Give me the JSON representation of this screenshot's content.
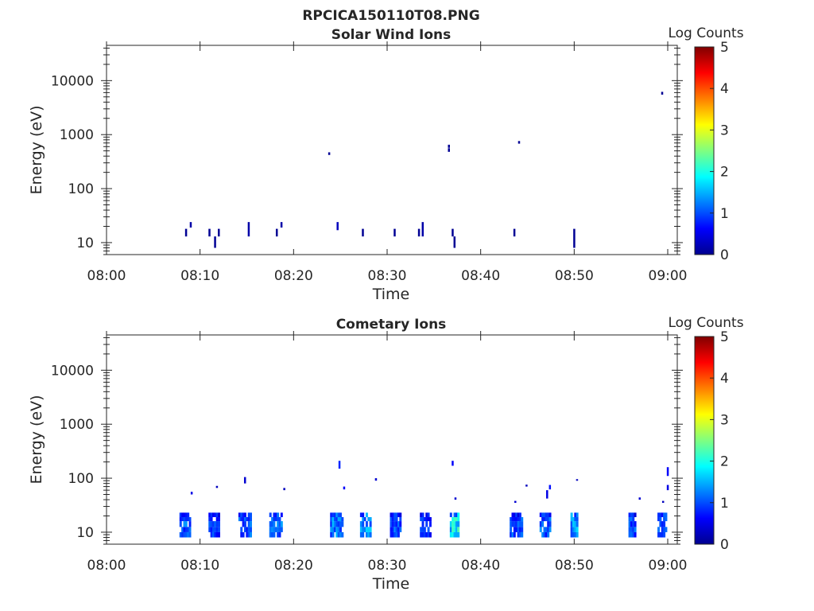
{
  "figure": {
    "title": "RPCICA150110T08.PNG"
  },
  "chart_data": [
    {
      "type": "heatmap",
      "title": "Solar Wind Ions",
      "xlabel": "Time",
      "ylabel": "Energy (eV)",
      "xlim": [
        "08:00",
        "09:00"
      ],
      "ylim": [
        6,
        45000
      ],
      "yscale": "log",
      "x_ticks": [
        "08:00",
        "08:10",
        "08:20",
        "08:30",
        "08:40",
        "08:50",
        "09:00"
      ],
      "y_ticks": [
        10,
        100,
        1000,
        10000
      ],
      "y_tick_labels": [
        "10",
        "100",
        "1000",
        "10000"
      ],
      "colorbar": {
        "label": "Log Counts",
        "min": 0,
        "max": 5,
        "ticks": [
          "0",
          "1",
          "2",
          "3",
          "4",
          "5"
        ],
        "colormap": "jet"
      },
      "grid": false,
      "cells": [
        [
          8.4,
          13,
          18,
          0.1
        ],
        [
          8.9,
          19,
          24,
          0.2
        ],
        [
          10.9,
          13,
          18,
          0.1
        ],
        [
          11.5,
          8,
          13,
          0.1
        ],
        [
          11.9,
          13,
          18,
          0.1
        ],
        [
          15.1,
          13,
          24,
          0.2
        ],
        [
          18.1,
          13,
          18,
          0.1
        ],
        [
          18.6,
          19,
          24,
          0.2
        ],
        [
          23.7,
          420,
          470,
          0.1
        ],
        [
          24.6,
          17,
          24,
          0.3
        ],
        [
          27.3,
          13,
          18,
          0.1
        ],
        [
          30.7,
          13,
          18,
          0.1
        ],
        [
          33.3,
          13,
          18,
          0.1
        ],
        [
          33.7,
          13,
          24,
          0.2
        ],
        [
          36.5,
          480,
          560,
          0.1
        ],
        [
          36.5,
          570,
          650,
          0.1
        ],
        [
          36.9,
          13,
          18,
          0.1
        ],
        [
          37.1,
          8,
          13,
          0.1
        ],
        [
          43.5,
          13,
          18,
          0.1
        ],
        [
          44.0,
          680,
          760,
          0.1
        ],
        [
          49.9,
          8,
          18,
          0.1
        ],
        [
          59.3,
          5500,
          6200,
          0.1
        ]
      ]
    },
    {
      "type": "heatmap",
      "title": "Cometary Ions",
      "xlabel": "Time",
      "ylabel": "Energy (eV)",
      "xlim": [
        "08:00",
        "09:00"
      ],
      "ylim": [
        6,
        45000
      ],
      "yscale": "log",
      "x_ticks": [
        "08:00",
        "08:10",
        "08:20",
        "08:30",
        "08:40",
        "08:50",
        "09:00"
      ],
      "y_ticks": [
        10,
        100,
        1000,
        10000
      ],
      "y_tick_labels": [
        "10",
        "100",
        "1000",
        "10000"
      ],
      "colorbar": {
        "label": "Log Counts",
        "min": 0,
        "max": 5,
        "ticks": [
          "0",
          "1",
          "2",
          "3",
          "4",
          "5"
        ],
        "colormap": "jet"
      },
      "grid": false,
      "clusters": [
        [
          7.8,
          8.9,
          1.2
        ],
        [
          10.9,
          12.0,
          1.0
        ],
        [
          14.1,
          15.4,
          1.2
        ],
        [
          17.4,
          18.6,
          1.3
        ],
        [
          23.9,
          25.2,
          1.4
        ],
        [
          27.1,
          28.2,
          1.5
        ],
        [
          30.3,
          31.4,
          1.2
        ],
        [
          33.5,
          34.6,
          1.0
        ],
        [
          36.7,
          37.6,
          2.0
        ],
        [
          43.1,
          44.4,
          1.1
        ],
        [
          46.3,
          47.5,
          1.2
        ],
        [
          49.6,
          50.4,
          1.6
        ],
        [
          55.8,
          56.6,
          1.1
        ],
        [
          58.9,
          59.8,
          1.2
        ]
      ],
      "cells": [
        [
          9.0,
          50,
          56,
          0.5
        ],
        [
          11.7,
          66,
          72,
          0.3
        ],
        [
          14.7,
          80,
          105,
          0.4
        ],
        [
          18.9,
          60,
          66,
          0.3
        ],
        [
          24.8,
          150,
          210,
          0.8
        ],
        [
          25.3,
          62,
          70,
          0.6
        ],
        [
          28.7,
          90,
          100,
          0.4
        ],
        [
          36.9,
          170,
          210,
          0.6
        ],
        [
          37.2,
          40,
          44,
          0.4
        ],
        [
          43.6,
          35,
          38,
          0.4
        ],
        [
          44.8,
          70,
          76,
          0.3
        ],
        [
          47.0,
          42,
          60,
          0.5
        ],
        [
          47.3,
          62,
          75,
          0.7
        ],
        [
          50.2,
          90,
          96,
          0.3
        ],
        [
          56.9,
          40,
          44,
          0.4
        ],
        [
          59.4,
          35,
          38,
          0.3
        ],
        [
          59.9,
          110,
          160,
          0.6
        ],
        [
          59.9,
          60,
          75,
          0.5
        ]
      ]
    }
  ]
}
